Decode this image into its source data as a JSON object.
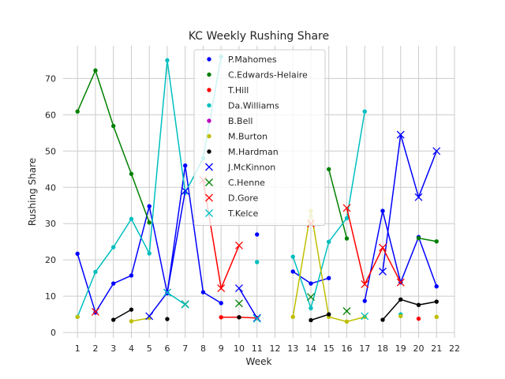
{
  "chart_data": {
    "type": "line",
    "title": "KC Weekly Rushing Share",
    "xlabel": "Week",
    "ylabel": "Rushing Share",
    "xlim": [
      0.2,
      22
    ],
    "ylim": [
      -1.5,
      79
    ],
    "xticks": [
      1,
      2,
      3,
      4,
      5,
      6,
      7,
      8,
      9,
      10,
      11,
      12,
      13,
      14,
      15,
      16,
      17,
      18,
      19,
      20,
      21,
      22
    ],
    "yticks": [
      0,
      10,
      20,
      30,
      40,
      50,
      60,
      70
    ],
    "grid": true,
    "legend_position": "upper center",
    "series": [
      {
        "name": "P.Mahomes",
        "color": "#0000ff",
        "marker": "dot",
        "x": [
          1,
          2,
          3,
          4,
          5,
          6,
          7,
          8,
          9,
          11,
          13,
          14,
          15,
          17,
          18,
          19,
          20,
          21
        ],
        "y": [
          21.7,
          5.5,
          13.5,
          15.7,
          34.8,
          10.8,
          46.0,
          11.1,
          8.1,
          27.0,
          16.8,
          13.5,
          15.0,
          8.7,
          33.5,
          13.8,
          26.3,
          12.7
        ]
      },
      {
        "name": "C.Edwards-Helaire",
        "color": "#008000",
        "marker": "dot",
        "x": [
          1,
          2,
          3,
          4,
          5,
          15,
          16,
          20,
          21
        ],
        "y": [
          60.9,
          72.2,
          56.9,
          43.7,
          30.3,
          45.0,
          25.9,
          26.0,
          25.1
        ]
      },
      {
        "name": "T.Hill",
        "color": "#ff0000",
        "marker": "dot",
        "x": [
          9,
          10,
          11,
          20
        ],
        "y": [
          4.2,
          4.2,
          4.0,
          3.8
        ]
      },
      {
        "name": "Da.Williams",
        "color": "#00bfbf",
        "marker": "dot",
        "x": [
          1,
          2,
          3,
          4,
          5,
          6,
          7,
          8,
          9,
          11,
          13,
          14,
          15,
          16,
          17,
          19
        ],
        "y": [
          4.3,
          16.7,
          23.5,
          31.3,
          21.8,
          75.0,
          38.5,
          48.0,
          76.0,
          19.4,
          20.9,
          6.7,
          25.0,
          31.5,
          60.9,
          5.0
        ]
      },
      {
        "name": "B.Bell",
        "color": "#bf00bf",
        "marker": "dot",
        "x": [],
        "y": []
      },
      {
        "name": "M.Burton",
        "color": "#bfbf00",
        "marker": "dot",
        "x": [
          1,
          4,
          5,
          13,
          14,
          15,
          16,
          17,
          19,
          21
        ],
        "y": [
          4.3,
          3.1,
          4.0,
          4.3,
          33.5,
          4.3,
          3.0,
          4.3,
          4.5,
          4.3
        ]
      },
      {
        "name": "M.Hardman",
        "color": "#000000",
        "marker": "dot",
        "x": [
          3,
          4,
          6,
          10,
          14,
          15,
          18,
          19,
          20,
          21
        ],
        "y": [
          3.5,
          6.3,
          3.7,
          4.2,
          3.4,
          5.0,
          3.5,
          9.1,
          7.6,
          8.5
        ]
      },
      {
        "name": "J.McKinnon",
        "color": "#0000ff",
        "marker": "x",
        "x": [
          5,
          6,
          7,
          10,
          11,
          18,
          19,
          20,
          21
        ],
        "y": [
          4.5,
          11.0,
          39.0,
          12.2,
          4.0,
          16.8,
          54.5,
          37.3,
          50.0
        ]
      },
      {
        "name": "C.Henne",
        "color": "#008000",
        "marker": "x",
        "x": [
          7,
          10,
          14,
          16
        ],
        "y": [
          7.8,
          8.0,
          9.8,
          5.9
        ]
      },
      {
        "name": "D.Gore",
        "color": "#ff0000",
        "marker": "x",
        "x": [
          2,
          8,
          9,
          10,
          14,
          16,
          17,
          18,
          19
        ],
        "y": [
          5.7,
          42.0,
          12.2,
          24.0,
          30.0,
          34.3,
          13.3,
          23.4,
          13.8
        ]
      },
      {
        "name": "T.Kelce",
        "color": "#00bfbf",
        "marker": "x",
        "x": [
          6,
          7,
          11,
          17
        ],
        "y": [
          11.0,
          7.7,
          3.8,
          4.5
        ]
      }
    ]
  }
}
